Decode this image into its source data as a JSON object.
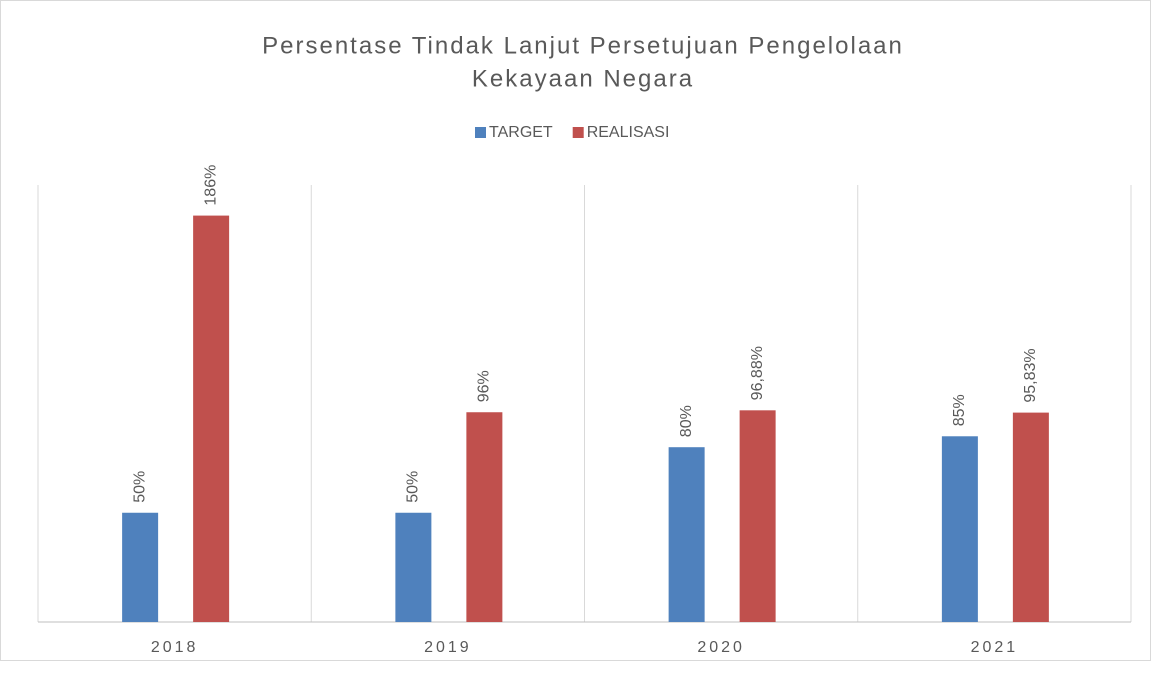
{
  "chart_data": {
    "type": "bar",
    "title": [
      "Persentase Tindak Lanjut Persetujuan Pengelolaan",
      "Kekayaan Negara"
    ],
    "categories": [
      "2018",
      "2019",
      "2020",
      "2021"
    ],
    "series": [
      {
        "name": "TARGET",
        "color": "#4f81bd",
        "values": [
          50,
          50,
          80,
          85
        ],
        "value_labels": [
          "50%",
          "50%",
          "80%",
          "85%"
        ]
      },
      {
        "name": "REALISASI",
        "color": "#c0504d",
        "values": [
          186,
          96,
          96.88,
          95.83
        ],
        "value_labels": [
          "186%",
          "96%",
          "96,88%",
          "95,83%"
        ]
      }
    ],
    "ylim": [
      0,
      200
    ],
    "legend": "top"
  }
}
